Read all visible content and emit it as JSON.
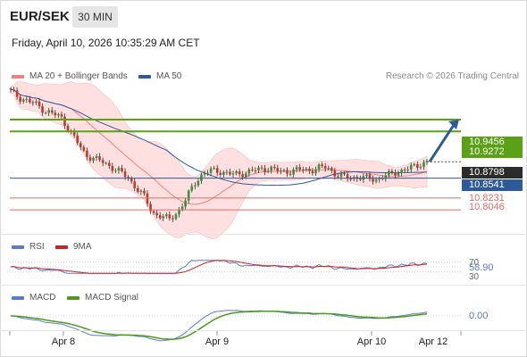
{
  "header": {
    "pair": "EUR/SEK",
    "timeframe": "30 MIN",
    "datetime": "Friday, April 10, 2026 10:35:29 AM CET"
  },
  "legend": {
    "ma20_label": "MA 20 + Bollinger Bands",
    "ma50_label": "MA 50",
    "credit": "Research © 2026 Trading Central"
  },
  "colors": {
    "ma20": "#f08080",
    "ma50": "#2e5a9a",
    "bollinger_fill": "#fde0df",
    "candle_up": "#3e8e3e",
    "candle_down": "#c0392b",
    "resistance": "#5aa118",
    "support_blue": "#2e5a9a",
    "support_red": "#e06b6b",
    "last_price_tag": "#2b2b2b",
    "rsi": "#5b7bd0",
    "rsi_ma": "#cc2222",
    "macd": "#5b7bd0",
    "macd_signal": "#4c9a1a"
  },
  "price_tags": {
    "r1": "10.9456",
    "r2": "10.9272",
    "last": "10.8798",
    "s1": "10.8541",
    "s2": "10.8231",
    "s3": "10.8046"
  },
  "rsi_panel": {
    "label": "RSI",
    "ma_label": "9MA",
    "level_high": "70",
    "level_low": "30",
    "value": "58.90"
  },
  "macd_panel": {
    "label": "MACD",
    "signal_label": "MACD Signal",
    "value": "0.00"
  },
  "x_axis": {
    "labels": [
      "Apr 8",
      "Apr 9",
      "Apr 10",
      "Apr 12"
    ]
  },
  "chart_data": {
    "type": "candlestick",
    "symbol": "EUR/SEK",
    "interval": "30 MIN",
    "ylim": [
      10.77,
      11.0
    ],
    "levels": {
      "resistance": [
        10.9456,
        10.9272
      ],
      "last": 10.8798,
      "support": [
        10.8541,
        10.8231,
        10.8046
      ]
    },
    "rsi": {
      "value": 58.9,
      "levels": [
        30,
        70
      ]
    },
    "macd": {
      "value": 0.0
    },
    "ohlc_anchors": [
      10.99,
      10.98,
      10.975,
      10.97,
      10.96,
      10.955,
      10.95,
      10.93,
      10.91,
      10.89,
      10.885,
      10.88,
      10.872,
      10.865,
      10.856,
      10.84,
      10.826,
      10.8,
      10.795,
      10.79,
      10.8,
      10.82,
      10.845,
      10.86,
      10.866,
      10.865,
      10.862,
      10.86,
      10.862,
      10.866,
      10.868,
      10.87,
      10.866,
      10.864,
      10.866,
      10.868,
      10.866,
      10.87,
      10.872,
      10.86,
      10.856,
      10.855,
      10.855,
      10.854,
      10.852,
      10.858,
      10.862,
      10.866,
      10.87,
      10.875,
      10.8798
    ]
  }
}
